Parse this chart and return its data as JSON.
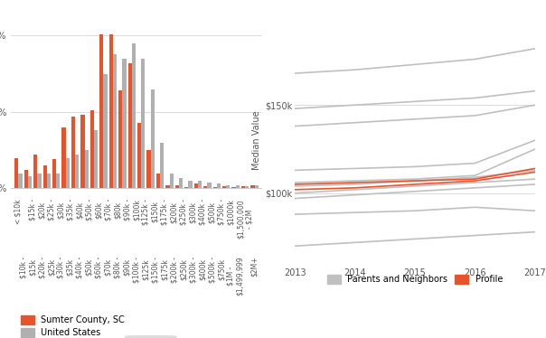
{
  "bar_categories": [
    "< $10k",
    "$15k - $20k",
    "$25k - $30k",
    "$35k - $40k",
    "$50k - $60k",
    "$70k - $80k",
    "$90k - $100k",
    "$125k - $150k",
    "$175k - $200k",
    "$250k - $300k",
    "$400k - $500k",
    "$750k - $1000k",
    "$1,500,000 - $2M"
  ],
  "bar_labels_top": [
    "< $10k",
    "$15k -\n$20k",
    "$25k -\n$30k",
    "$35k -\n$40k",
    "$50k -\n$60k",
    "$70k -\n$80k",
    "$90k -\n$100k",
    "$125k -\n$150k",
    "$175k -\n$200k",
    "$250k -\n$300k",
    "$400k -\n$500k",
    "$750k -\n$1000k",
    "$1,500,000\n- $2M"
  ],
  "bar_labels_bottom": [
    "$10k -\n$15k",
    "$20k -\n$25k",
    "$30k -\n$35k",
    "$40k -\n$50k",
    "$60k -\n$70k",
    "$80k -\n$90k",
    "$100k -\n$125k",
    "$150k -\n$175k",
    "$200k -\n$250k",
    "$300k -\n$400k",
    "$500k -\n$750k",
    "$1M -\n$1,499,999",
    "$2M+"
  ],
  "sumter_values": [
    2.0,
    1.2,
    2.2,
    1.5,
    1.9,
    4.0,
    4.7,
    4.8,
    5.1,
    10.1,
    10.1,
    6.4,
    8.2,
    4.3,
    2.5,
    1.0,
    0.2,
    0.2,
    0.1,
    0.3,
    0.15,
    0.1,
    0.15,
    0.1,
    0.12,
    0.2
  ],
  "us_values": [
    1.0,
    0.8,
    1.0,
    1.0,
    1.0,
    2.0,
    2.2,
    2.5,
    3.8,
    7.5,
    8.8,
    8.5,
    9.5,
    8.5,
    6.5,
    3.0,
    1.0,
    0.7,
    0.5,
    0.5,
    0.4,
    0.3,
    0.2,
    0.2,
    0.15,
    0.2
  ],
  "n_groups": 26,
  "sumter_color": "#E8532A",
  "us_color": "#B0B0B0",
  "line_years": [
    2013,
    2014,
    2015,
    2016,
    2017
  ],
  "line_data_neighbors": [
    [
      168000,
      170000,
      173000,
      176000,
      182000
    ],
    [
      148000,
      150000,
      152000,
      154000,
      158000
    ],
    [
      138000,
      140000,
      142000,
      144000,
      150000
    ],
    [
      113000,
      114000,
      115000,
      117000,
      130000
    ],
    [
      106000,
      107000,
      108000,
      110000,
      125000
    ],
    [
      104000,
      105000,
      107000,
      109000,
      113000
    ],
    [
      100000,
      102000,
      104000,
      106000,
      108000
    ],
    [
      97000,
      99000,
      101000,
      103000,
      105000
    ],
    [
      88000,
      89000,
      90000,
      92000,
      90000
    ],
    [
      70000,
      72000,
      74000,
      76000,
      78000
    ]
  ],
  "line_data_profile": [
    [
      105000,
      106000,
      107000,
      108000,
      114000
    ],
    [
      102000,
      103000,
      105000,
      107000,
      112000
    ]
  ],
  "neighbor_color": "#C0C0C0",
  "profile_color": "#E8532A",
  "ylabel_line": "Median Value",
  "yticks_line": [
    100000,
    150000
  ],
  "ytick_labels_line": [
    "$100k",
    "$150k"
  ],
  "background_color": "#FFFFFF"
}
